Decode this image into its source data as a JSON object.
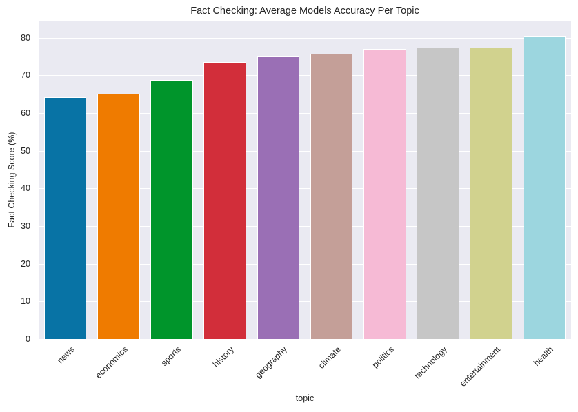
{
  "chart_data": {
    "type": "bar",
    "title": "Fact Checking: Average Models Accuracy Per Topic",
    "xlabel": "topic",
    "ylabel": "Fact Checking Score (%)",
    "categories": [
      "news",
      "economics",
      "sports",
      "history",
      "geography",
      "climate",
      "politics",
      "technology",
      "entertainment",
      "health"
    ],
    "values": [
      64.2,
      65.1,
      68.7,
      73.5,
      75.0,
      75.7,
      77.0,
      77.3,
      77.3,
      80.4
    ],
    "colors": [
      "#0873a5",
      "#ef7b00",
      "#00952b",
      "#d22e3a",
      "#9a6fb5",
      "#c49f98",
      "#f6bad5",
      "#c6c6c6",
      "#d1d28e",
      "#9cd6df"
    ],
    "yticks": [
      0,
      10,
      20,
      30,
      40,
      50,
      60,
      70,
      80
    ],
    "ylim": [
      0,
      84.3
    ],
    "grid": true,
    "legend": null,
    "background": "#eaeaf2"
  }
}
